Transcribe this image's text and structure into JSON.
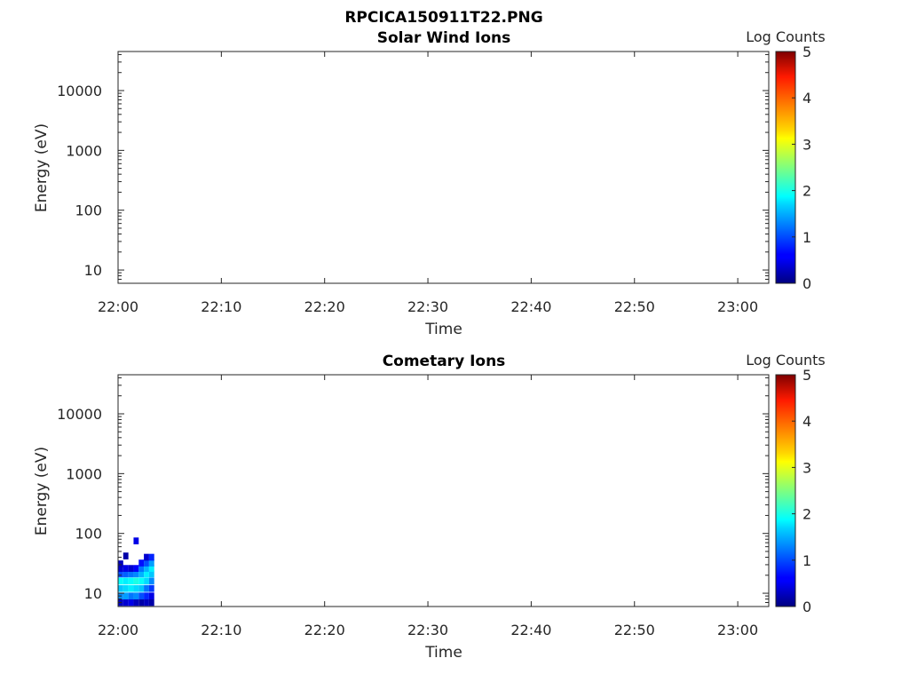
{
  "figure_title": "RPCICA150911T22.PNG",
  "chart_data": [
    {
      "type": "heatmap",
      "title": "Solar Wind Ions",
      "xlabel": "Time",
      "ylabel": "Energy (eV)",
      "y_scale": "log",
      "x_ticks": [
        "22:00",
        "22:10",
        "22:20",
        "22:30",
        "22:40",
        "22:50",
        "23:00"
      ],
      "xlim": [
        "22:00",
        "23:03"
      ],
      "y_ticks": [
        10,
        100,
        1000,
        10000
      ],
      "ylim": [
        6,
        45000
      ],
      "colorbar": {
        "label": "Log Counts",
        "ticks": [
          0,
          1,
          2,
          3,
          4,
          5
        ],
        "range": [
          0,
          5
        ],
        "colormap": "jet"
      },
      "grid": false,
      "cells": []
    },
    {
      "type": "heatmap",
      "title": "Cometary Ions",
      "xlabel": "Time",
      "ylabel": "Energy (eV)",
      "y_scale": "log",
      "x_ticks": [
        "22:00",
        "22:10",
        "22:20",
        "22:30",
        "22:40",
        "22:50",
        "23:00"
      ],
      "xlim": [
        "22:00",
        "23:03"
      ],
      "y_ticks": [
        10,
        100,
        1000,
        10000
      ],
      "ylim": [
        6,
        45000
      ],
      "colorbar": {
        "label": "Log Counts",
        "ticks": [
          0,
          1,
          2,
          3,
          4,
          5
        ],
        "range": [
          0,
          5
        ],
        "colormap": "jet"
      },
      "grid": false,
      "cells": [
        {
          "t": "22:00:00",
          "e": [
            [
              7,
              0.3
            ],
            [
              9,
              1.3
            ],
            [
              12,
              1.6
            ],
            [
              16,
              1.9
            ],
            [
              21,
              1.0
            ],
            [
              26,
              0.4
            ],
            [
              31,
              0.3
            ]
          ]
        },
        {
          "t": "22:00:30",
          "e": [
            [
              7,
              0.4
            ],
            [
              9,
              1.4
            ],
            [
              12,
              1.7
            ],
            [
              16,
              1.8
            ],
            [
              21,
              1.1
            ],
            [
              26,
              0.5
            ],
            [
              42,
              0.2
            ]
          ]
        },
        {
          "t": "22:01:00",
          "e": [
            [
              7,
              0.5
            ],
            [
              9,
              1.2
            ],
            [
              12,
              1.8
            ],
            [
              16,
              1.9
            ],
            [
              21,
              1.2
            ],
            [
              26,
              0.4
            ]
          ]
        },
        {
          "t": "22:01:30",
          "e": [
            [
              7,
              0.3
            ],
            [
              9,
              1.3
            ],
            [
              12,
              1.7
            ],
            [
              16,
              2.0
            ],
            [
              21,
              1.3
            ],
            [
              26,
              0.6
            ],
            [
              75,
              0.5
            ]
          ]
        },
        {
          "t": "22:02:00",
          "e": [
            [
              7,
              0.2
            ],
            [
              9,
              1.0
            ],
            [
              12,
              1.6
            ],
            [
              16,
              1.9
            ],
            [
              21,
              1.5
            ],
            [
              26,
              1.2
            ],
            [
              32,
              0.7
            ]
          ]
        },
        {
          "t": "22:02:30",
          "e": [
            [
              7,
              0.3
            ],
            [
              9,
              0.8
            ],
            [
              12,
              1.2
            ],
            [
              16,
              1.7
            ],
            [
              21,
              1.8
            ],
            [
              26,
              1.5
            ],
            [
              32,
              1.0
            ],
            [
              40,
              0.4
            ]
          ]
        },
        {
          "t": "22:03:00",
          "e": [
            [
              7,
              0.2
            ],
            [
              9,
              0.5
            ],
            [
              12,
              0.9
            ],
            [
              16,
              1.3
            ],
            [
              21,
              1.6
            ],
            [
              26,
              1.8
            ],
            [
              32,
              1.4
            ],
            [
              40,
              0.8
            ]
          ]
        }
      ]
    }
  ]
}
